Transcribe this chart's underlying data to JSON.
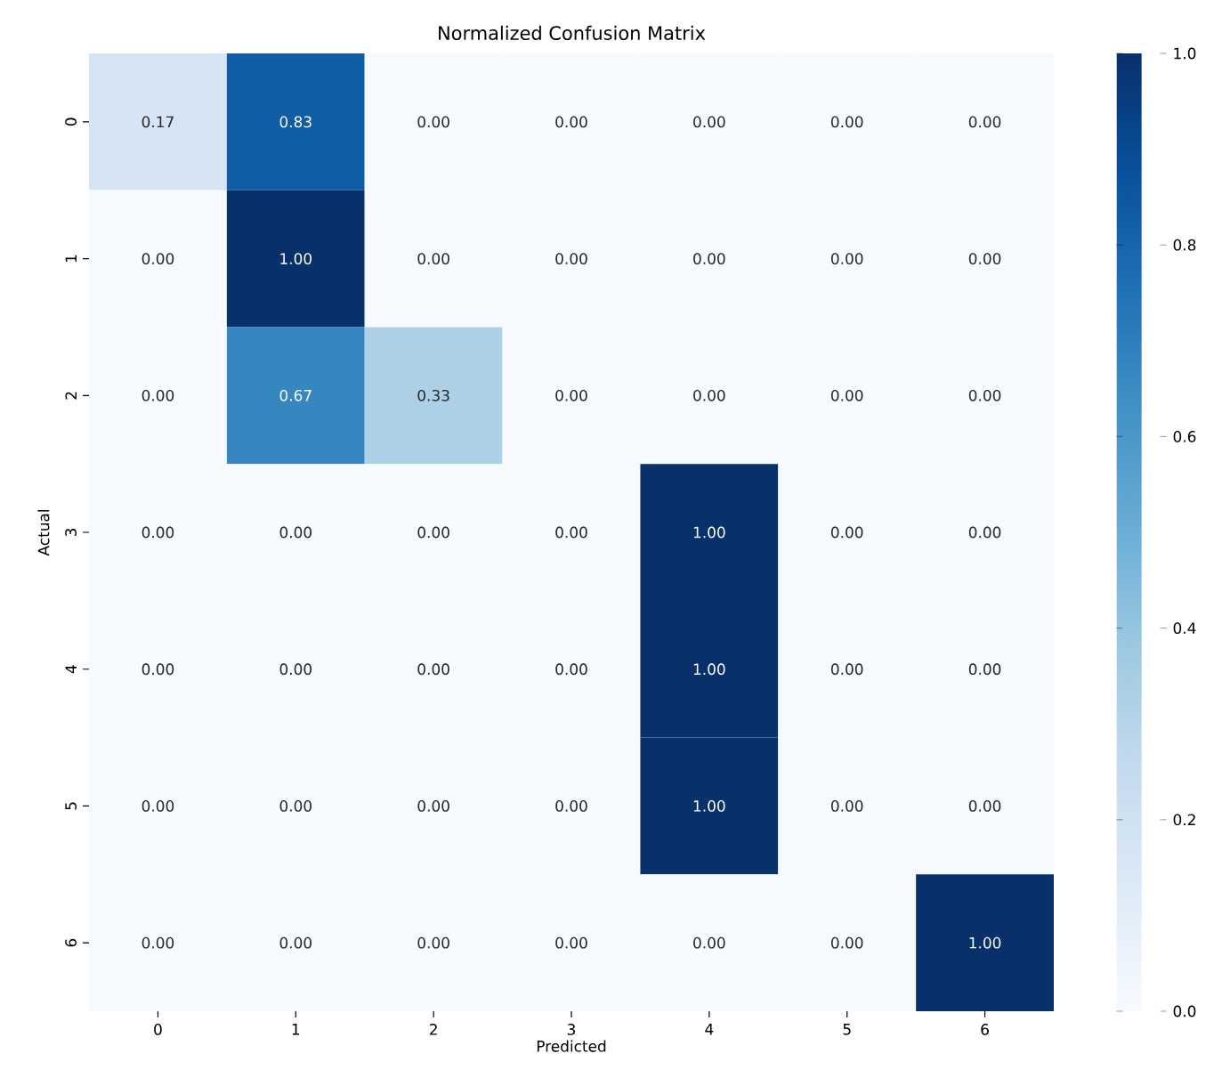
{
  "chart_data": {
    "type": "heatmap",
    "title": "Normalized Confusion Matrix",
    "xlabel": "Predicted",
    "ylabel": "Actual",
    "categories": [
      "0",
      "1",
      "2",
      "3",
      "4",
      "5",
      "6"
    ],
    "y_categories": [
      "0",
      "1",
      "2",
      "3",
      "4",
      "5",
      "6"
    ],
    "cells": [
      [
        0.17,
        0.83,
        0,
        0,
        0,
        0,
        0
      ],
      [
        0,
        1,
        0,
        0,
        0,
        0,
        0
      ],
      [
        0,
        0.67,
        0.33,
        0,
        0,
        0,
        0
      ],
      [
        0,
        0,
        0,
        0,
        1,
        0,
        0
      ],
      [
        0,
        0,
        0,
        0,
        1,
        0,
        0
      ],
      [
        0,
        0,
        0,
        0,
        1,
        0,
        0
      ],
      [
        0,
        0,
        0,
        0,
        0,
        0,
        1
      ]
    ],
    "cell_labels": [
      [
        "0.17",
        "0.83",
        "0.00",
        "0.00",
        "0.00",
        "0.00",
        "0.00"
      ],
      [
        "0.00",
        "1.00",
        "0.00",
        "0.00",
        "0.00",
        "0.00",
        "0.00"
      ],
      [
        "0.00",
        "0.67",
        "0.33",
        "0.00",
        "0.00",
        "0.00",
        "0.00"
      ],
      [
        "0.00",
        "0.00",
        "0.00",
        "0.00",
        "1.00",
        "0.00",
        "0.00"
      ],
      [
        "0.00",
        "0.00",
        "0.00",
        "0.00",
        "1.00",
        "0.00",
        "0.00"
      ],
      [
        "0.00",
        "0.00",
        "0.00",
        "0.00",
        "1.00",
        "0.00",
        "0.00"
      ],
      [
        "0.00",
        "0.00",
        "0.00",
        "0.00",
        "0.00",
        "0.00",
        "1.00"
      ]
    ],
    "clim": [
      0,
      1
    ],
    "cticks": [
      {
        "value": 0,
        "label": "0.0"
      },
      {
        "value": 0.2,
        "label": "0.2"
      },
      {
        "value": 0.4,
        "label": "0.4"
      },
      {
        "value": 0.6,
        "label": "0.6"
      },
      {
        "value": 0.8,
        "label": "0.8"
      },
      {
        "value": 1,
        "label": "1.0"
      }
    ]
  }
}
